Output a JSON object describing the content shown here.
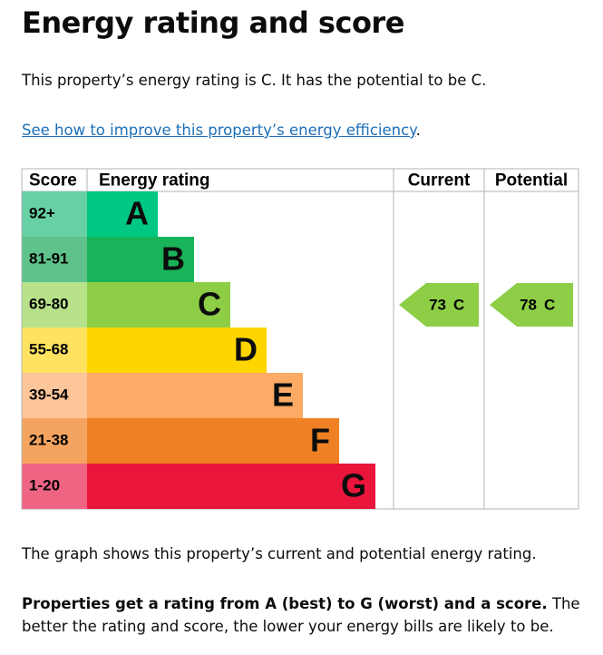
{
  "heading": "Energy rating and score",
  "intro": "This property’s energy rating is C. It has the potential to be C.",
  "link": {
    "text": "See how to improve this property’s energy efficiency",
    "after": "."
  },
  "table": {
    "headers": [
      "Score",
      "Energy rating",
      "Current",
      "Potential"
    ],
    "rows": [
      {
        "score": "92+",
        "band": "A"
      },
      {
        "score": "81-91",
        "band": "B"
      },
      {
        "score": "69-80",
        "band": "C"
      },
      {
        "score": "55-68",
        "band": "D"
      },
      {
        "score": "39-54",
        "band": "E"
      },
      {
        "score": "21-38",
        "band": "F"
      },
      {
        "score": "1-20",
        "band": "G"
      }
    ],
    "current": {
      "score": 73,
      "band": "C"
    },
    "potential": {
      "score": 78,
      "band": "C"
    }
  },
  "note": "The graph shows this property’s current and potential energy rating.",
  "explain": {
    "bold": "Properties get a rating from A (best) to G (worst) and a score.",
    "rest": " The better the rating and score, the lower your energy bills are likely to be."
  }
}
